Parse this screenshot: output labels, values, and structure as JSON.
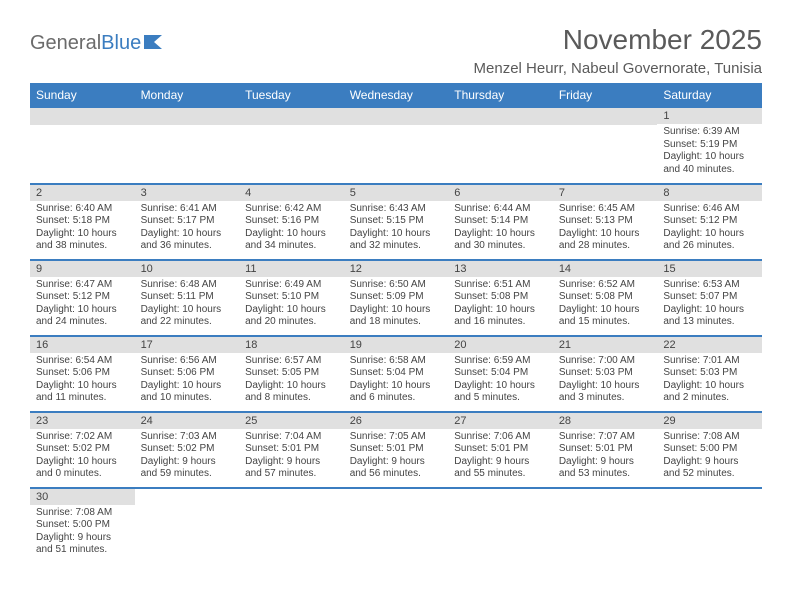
{
  "brand": {
    "part1": "General",
    "part2": "Blue"
  },
  "title": "November 2025",
  "location": "Menzel Heurr, Nabeul Governorate, Tunisia",
  "colors": {
    "header_bg": "#3b7dc0",
    "header_text": "#ffffff",
    "daybar_bg": "#e0e0e0",
    "row_border": "#3b7dc0",
    "body_text": "#444444",
    "title_text": "#5a5a5a",
    "page_bg": "#ffffff"
  },
  "weekdays": [
    "Sunday",
    "Monday",
    "Tuesday",
    "Wednesday",
    "Thursday",
    "Friday",
    "Saturday"
  ],
  "days_flat": [
    null,
    null,
    null,
    null,
    null,
    null,
    {
      "n": "1",
      "sunrise": "6:39 AM",
      "sunset": "5:19 PM",
      "daylight": "10 hours and 40 minutes."
    },
    {
      "n": "2",
      "sunrise": "6:40 AM",
      "sunset": "5:18 PM",
      "daylight": "10 hours and 38 minutes."
    },
    {
      "n": "3",
      "sunrise": "6:41 AM",
      "sunset": "5:17 PM",
      "daylight": "10 hours and 36 minutes."
    },
    {
      "n": "4",
      "sunrise": "6:42 AM",
      "sunset": "5:16 PM",
      "daylight": "10 hours and 34 minutes."
    },
    {
      "n": "5",
      "sunrise": "6:43 AM",
      "sunset": "5:15 PM",
      "daylight": "10 hours and 32 minutes."
    },
    {
      "n": "6",
      "sunrise": "6:44 AM",
      "sunset": "5:14 PM",
      "daylight": "10 hours and 30 minutes."
    },
    {
      "n": "7",
      "sunrise": "6:45 AM",
      "sunset": "5:13 PM",
      "daylight": "10 hours and 28 minutes."
    },
    {
      "n": "8",
      "sunrise": "6:46 AM",
      "sunset": "5:12 PM",
      "daylight": "10 hours and 26 minutes."
    },
    {
      "n": "9",
      "sunrise": "6:47 AM",
      "sunset": "5:12 PM",
      "daylight": "10 hours and 24 minutes."
    },
    {
      "n": "10",
      "sunrise": "6:48 AM",
      "sunset": "5:11 PM",
      "daylight": "10 hours and 22 minutes."
    },
    {
      "n": "11",
      "sunrise": "6:49 AM",
      "sunset": "5:10 PM",
      "daylight": "10 hours and 20 minutes."
    },
    {
      "n": "12",
      "sunrise": "6:50 AM",
      "sunset": "5:09 PM",
      "daylight": "10 hours and 18 minutes."
    },
    {
      "n": "13",
      "sunrise": "6:51 AM",
      "sunset": "5:08 PM",
      "daylight": "10 hours and 16 minutes."
    },
    {
      "n": "14",
      "sunrise": "6:52 AM",
      "sunset": "5:08 PM",
      "daylight": "10 hours and 15 minutes."
    },
    {
      "n": "15",
      "sunrise": "6:53 AM",
      "sunset": "5:07 PM",
      "daylight": "10 hours and 13 minutes."
    },
    {
      "n": "16",
      "sunrise": "6:54 AM",
      "sunset": "5:06 PM",
      "daylight": "10 hours and 11 minutes."
    },
    {
      "n": "17",
      "sunrise": "6:56 AM",
      "sunset": "5:06 PM",
      "daylight": "10 hours and 10 minutes."
    },
    {
      "n": "18",
      "sunrise": "6:57 AM",
      "sunset": "5:05 PM",
      "daylight": "10 hours and 8 minutes."
    },
    {
      "n": "19",
      "sunrise": "6:58 AM",
      "sunset": "5:04 PM",
      "daylight": "10 hours and 6 minutes."
    },
    {
      "n": "20",
      "sunrise": "6:59 AM",
      "sunset": "5:04 PM",
      "daylight": "10 hours and 5 minutes."
    },
    {
      "n": "21",
      "sunrise": "7:00 AM",
      "sunset": "5:03 PM",
      "daylight": "10 hours and 3 minutes."
    },
    {
      "n": "22",
      "sunrise": "7:01 AM",
      "sunset": "5:03 PM",
      "daylight": "10 hours and 2 minutes."
    },
    {
      "n": "23",
      "sunrise": "7:02 AM",
      "sunset": "5:02 PM",
      "daylight": "10 hours and 0 minutes."
    },
    {
      "n": "24",
      "sunrise": "7:03 AM",
      "sunset": "5:02 PM",
      "daylight": "9 hours and 59 minutes."
    },
    {
      "n": "25",
      "sunrise": "7:04 AM",
      "sunset": "5:01 PM",
      "daylight": "9 hours and 57 minutes."
    },
    {
      "n": "26",
      "sunrise": "7:05 AM",
      "sunset": "5:01 PM",
      "daylight": "9 hours and 56 minutes."
    },
    {
      "n": "27",
      "sunrise": "7:06 AM",
      "sunset": "5:01 PM",
      "daylight": "9 hours and 55 minutes."
    },
    {
      "n": "28",
      "sunrise": "7:07 AM",
      "sunset": "5:01 PM",
      "daylight": "9 hours and 53 minutes."
    },
    {
      "n": "29",
      "sunrise": "7:08 AM",
      "sunset": "5:00 PM",
      "daylight": "9 hours and 52 minutes."
    },
    {
      "n": "30",
      "sunrise": "7:08 AM",
      "sunset": "5:00 PM",
      "daylight": "9 hours and 51 minutes."
    },
    null,
    null,
    null,
    null,
    null,
    null
  ],
  "labels": {
    "sunrise": "Sunrise:",
    "sunset": "Sunset:",
    "daylight": "Daylight:"
  }
}
